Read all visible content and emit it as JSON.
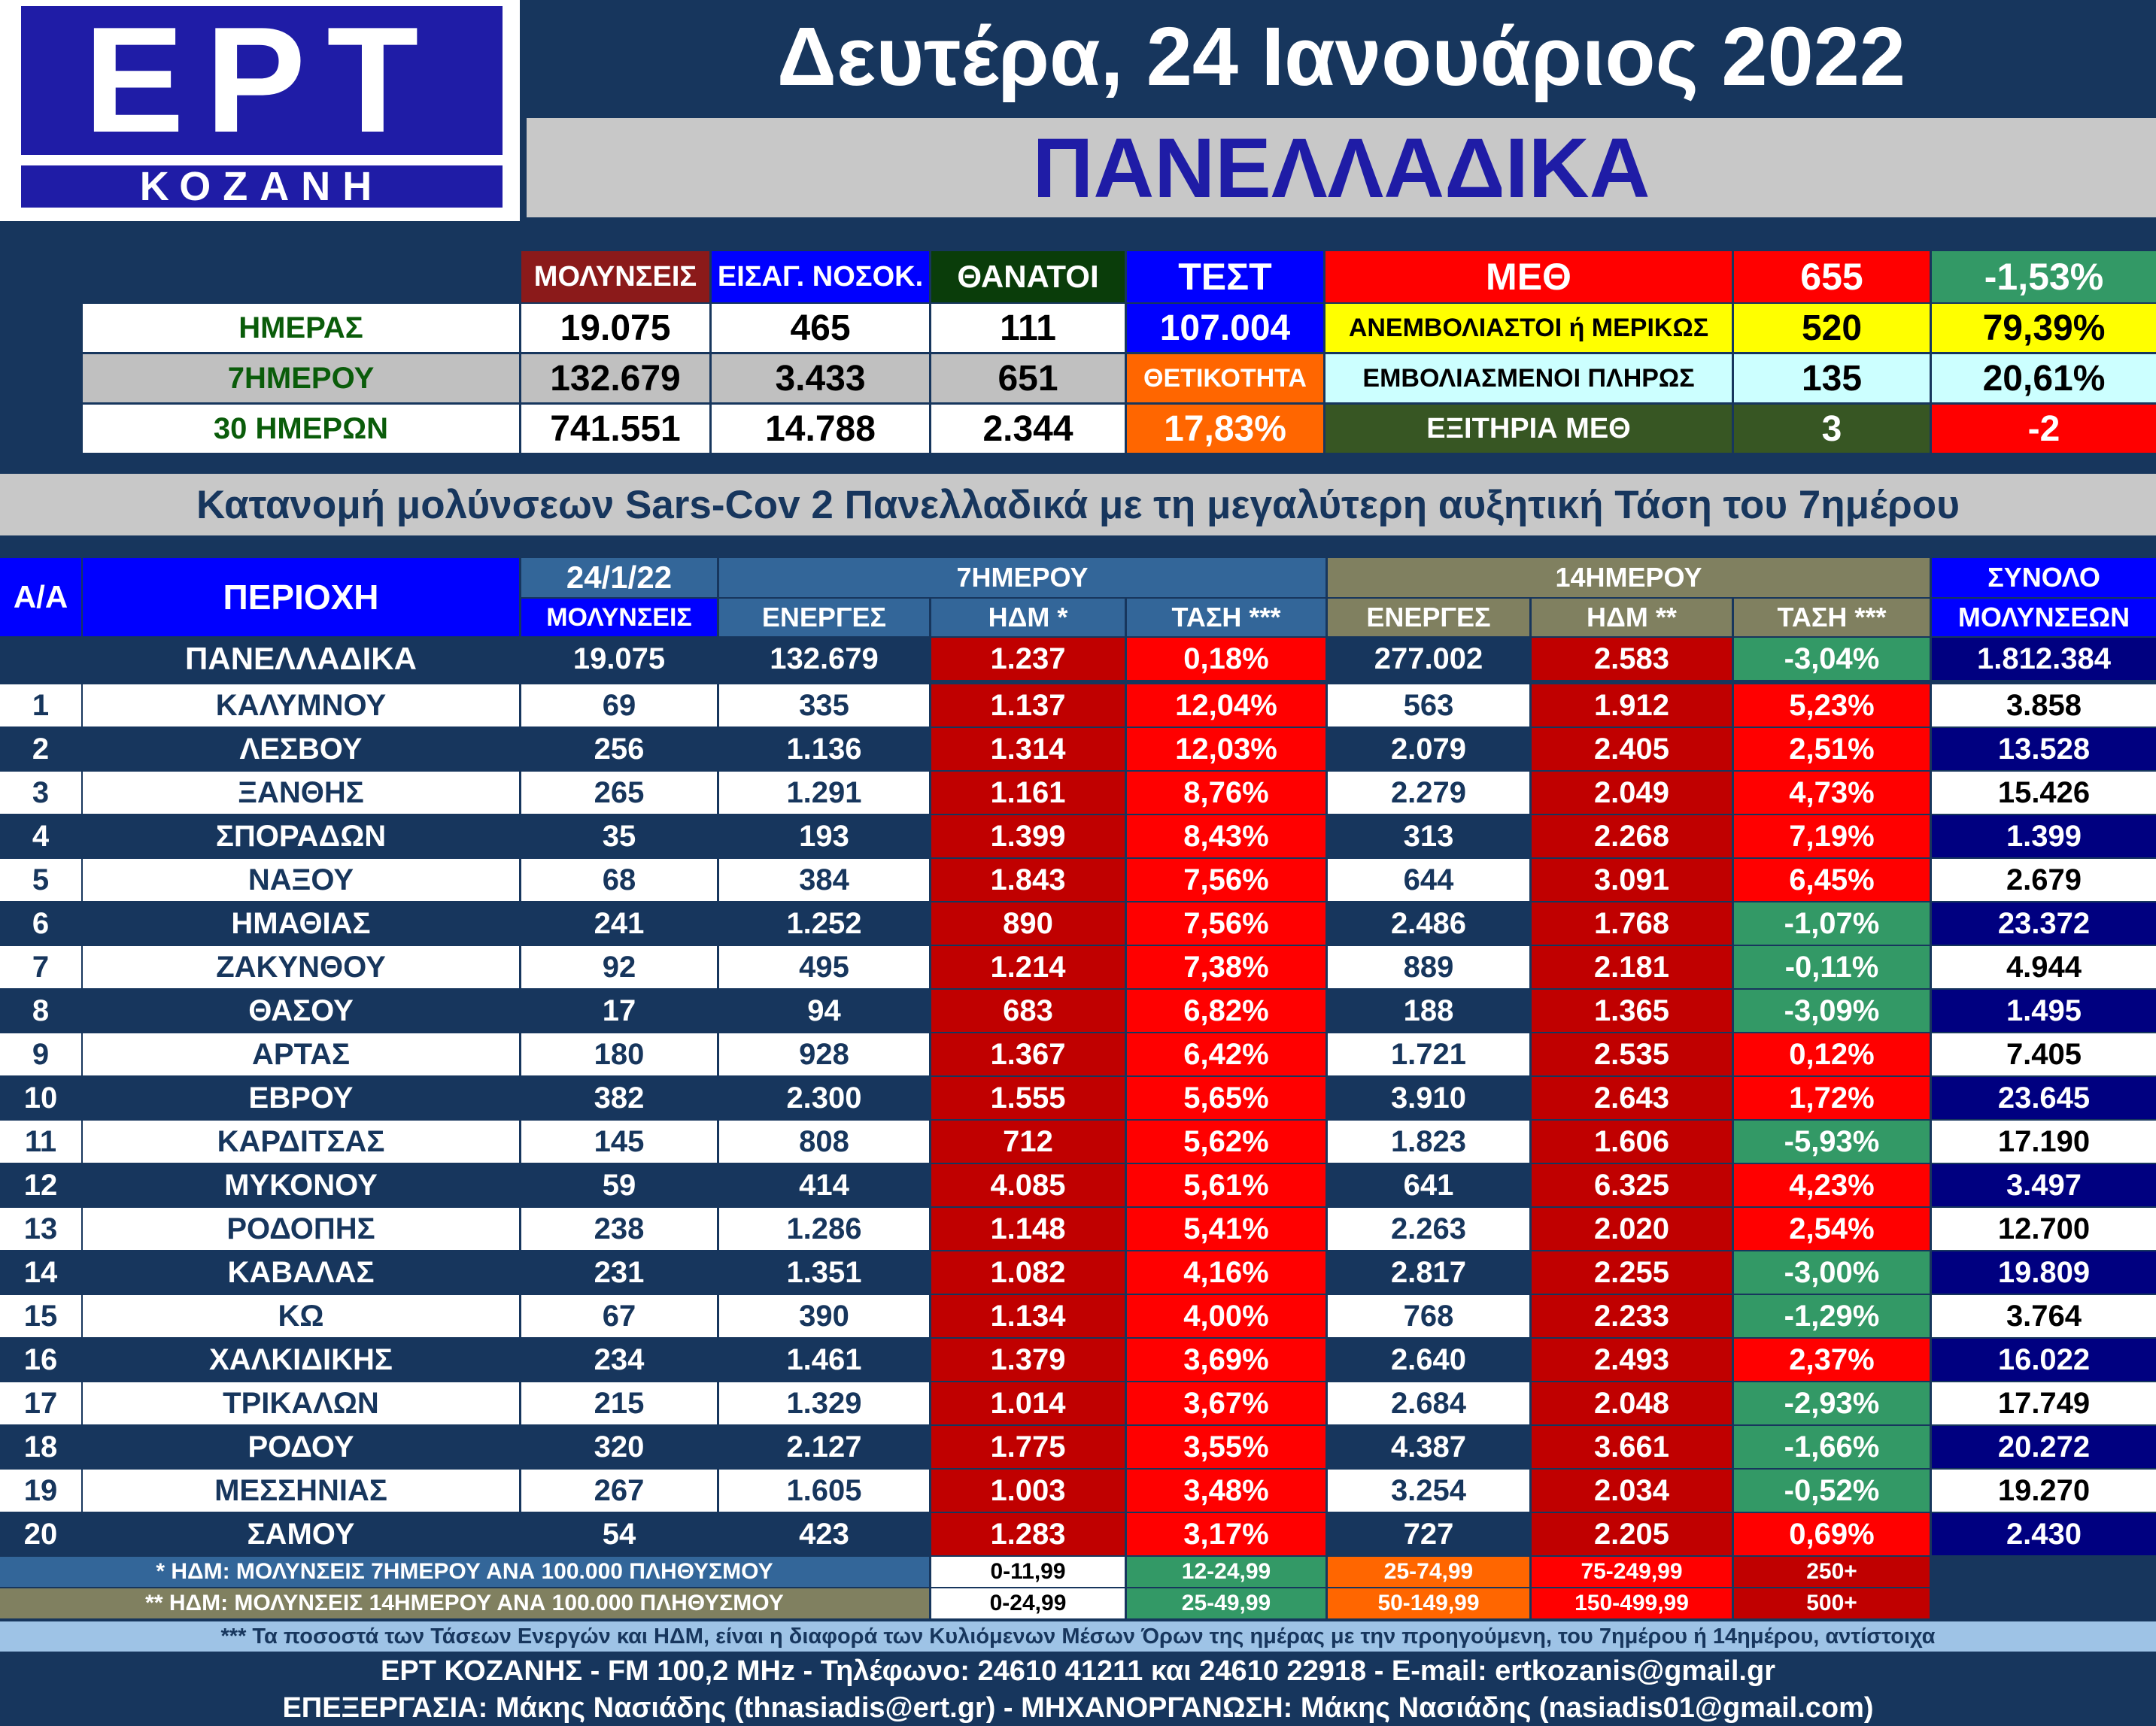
{
  "logo": {
    "ept": "ΕΡΤ",
    "city": "ΚΟΖΑΝΗ"
  },
  "date": "Δευτέρα, 24 Ιανουάριος 2022",
  "region_title": "ΠΑΝΕΛΛΑΔΙΚΑ",
  "summary": {
    "col_headers": {
      "infections": "ΜΟΛΥΝΣΕΙΣ",
      "hospital": "ΕΙΣΑΓ. ΝΟΣΟΚ.",
      "deaths": "ΘΑΝΑΤΟΙ",
      "test": "ΤΕΣΤ",
      "icu": "ΜΕΘ",
      "icu_count": "655",
      "icu_change": "-1,53%"
    },
    "rows": [
      {
        "label": "ΗΜΕΡΑΣ",
        "infections": "19.075",
        "hospital": "465",
        "deaths": "111",
        "extra": "107.004",
        "icu_label": "ΑΝΕΜΒΟΛΙΑΣΤΟΙ ή ΜΕΡΙΚΩΣ",
        "icu_value": "520",
        "icu_pct": "79,39%"
      },
      {
        "label": "7ΗΜΕΡΟΥ",
        "infections": "132.679",
        "hospital": "3.433",
        "deaths": "651",
        "extra": "ΘΕΤΙΚΟΤΗΤΑ",
        "icu_label": "ΕΜΒΟΛΙΑΣΜΕΝΟΙ ΠΛΗΡΩΣ",
        "icu_value": "135",
        "icu_pct": "20,61%"
      },
      {
        "label": "30 ΗΜΕΡΩΝ",
        "infections": "741.551",
        "hospital": "14.788",
        "deaths": "2.344",
        "extra": "17,83%",
        "icu_label": "ΕΞΙΤΗΡΙΑ ΜΕΘ",
        "icu_value": "3",
        "icu_pct": "-2"
      }
    ]
  },
  "table_title": "Κατανομή μολύνσεων Sars-Cov 2 Πανελλαδικά με τη μεγαλύτερη αυξητική Τάση του 7ημέρου",
  "table_headers": {
    "aa": "Α/Α",
    "region": "ΠΕΡΙΟΧΗ",
    "date": "24/1/22",
    "infections": "ΜΟΛΥΝΣΕΙΣ",
    "week": "7ΗΜΕΡΟΥ",
    "week_active": "ΕΝΕΡΓΕΣ",
    "week_hdm": "ΗΔΜ *",
    "week_trend": "ΤΑΣΗ ***",
    "two_week": "14ΗΜΕΡΟΥ",
    "tw_active": "ΕΝΕΡΓΕΣ",
    "tw_hdm": "ΗΔΜ **",
    "tw_trend": "ΤΑΣΗ ***",
    "total": "ΣΥΝΟΛΟ",
    "total2": "ΜΟΛΥΝΣΕΩΝ"
  },
  "national": {
    "region": "ΠΑΝΕΛΛΑΔΙΚΑ",
    "today": "19.075",
    "w_active": "132.679",
    "w_hdm": "1.237",
    "w_trend": "0,18%",
    "t_active": "277.002",
    "t_hdm": "2.583",
    "t_trend": "-3,04%",
    "total": "1.812.384"
  },
  "rows": [
    {
      "n": "1",
      "region": "ΚΑΛΥΜΝΟΥ",
      "today": "69",
      "w_active": "335",
      "w_hdm": "1.137",
      "w_trend": "12,04%",
      "t_active": "563",
      "t_hdm": "1.912",
      "t_trend": "5,23%",
      "total": "3.858"
    },
    {
      "n": "2",
      "region": "ΛΕΣΒΟΥ",
      "today": "256",
      "w_active": "1.136",
      "w_hdm": "1.314",
      "w_trend": "12,03%",
      "t_active": "2.079",
      "t_hdm": "2.405",
      "t_trend": "2,51%",
      "total": "13.528"
    },
    {
      "n": "3",
      "region": "ΞΑΝΘΗΣ",
      "today": "265",
      "w_active": "1.291",
      "w_hdm": "1.161",
      "w_trend": "8,76%",
      "t_active": "2.279",
      "t_hdm": "2.049",
      "t_trend": "4,73%",
      "total": "15.426"
    },
    {
      "n": "4",
      "region": "ΣΠΟΡΑΔΩΝ",
      "today": "35",
      "w_active": "193",
      "w_hdm": "1.399",
      "w_trend": "8,43%",
      "t_active": "313",
      "t_hdm": "2.268",
      "t_trend": "7,19%",
      "total": "1.399"
    },
    {
      "n": "5",
      "region": "ΝΑΞΟΥ",
      "today": "68",
      "w_active": "384",
      "w_hdm": "1.843",
      "w_trend": "7,56%",
      "t_active": "644",
      "t_hdm": "3.091",
      "t_trend": "6,45%",
      "total": "2.679"
    },
    {
      "n": "6",
      "region": "ΗΜΑΘΙΑΣ",
      "today": "241",
      "w_active": "1.252",
      "w_hdm": "890",
      "w_trend": "7,56%",
      "t_active": "2.486",
      "t_hdm": "1.768",
      "t_trend": "-1,07%",
      "total": "23.372"
    },
    {
      "n": "7",
      "region": "ΖΑΚΥΝΘΟΥ",
      "today": "92",
      "w_active": "495",
      "w_hdm": "1.214",
      "w_trend": "7,38%",
      "t_active": "889",
      "t_hdm": "2.181",
      "t_trend": "-0,11%",
      "total": "4.944"
    },
    {
      "n": "8",
      "region": "ΘΑΣΟΥ",
      "today": "17",
      "w_active": "94",
      "w_hdm": "683",
      "w_trend": "6,82%",
      "t_active": "188",
      "t_hdm": "1.365",
      "t_trend": "-3,09%",
      "total": "1.495"
    },
    {
      "n": "9",
      "region": "ΑΡΤΑΣ",
      "today": "180",
      "w_active": "928",
      "w_hdm": "1.367",
      "w_trend": "6,42%",
      "t_active": "1.721",
      "t_hdm": "2.535",
      "t_trend": "0,12%",
      "total": "7.405"
    },
    {
      "n": "10",
      "region": "ΕΒΡΟΥ",
      "today": "382",
      "w_active": "2.300",
      "w_hdm": "1.555",
      "w_trend": "5,65%",
      "t_active": "3.910",
      "t_hdm": "2.643",
      "t_trend": "1,72%",
      "total": "23.645"
    },
    {
      "n": "11",
      "region": "ΚΑΡΔΙΤΣΑΣ",
      "today": "145",
      "w_active": "808",
      "w_hdm": "712",
      "w_trend": "5,62%",
      "t_active": "1.823",
      "t_hdm": "1.606",
      "t_trend": "-5,93%",
      "total": "17.190"
    },
    {
      "n": "12",
      "region": "ΜΥΚΟΝΟΥ",
      "today": "59",
      "w_active": "414",
      "w_hdm": "4.085",
      "w_trend": "5,61%",
      "t_active": "641",
      "t_hdm": "6.325",
      "t_trend": "4,23%",
      "total": "3.497"
    },
    {
      "n": "13",
      "region": "ΡΟΔΟΠΗΣ",
      "today": "238",
      "w_active": "1.286",
      "w_hdm": "1.148",
      "w_trend": "5,41%",
      "t_active": "2.263",
      "t_hdm": "2.020",
      "t_trend": "2,54%",
      "total": "12.700"
    },
    {
      "n": "14",
      "region": "ΚΑΒΑΛΑΣ",
      "today": "231",
      "w_active": "1.351",
      "w_hdm": "1.082",
      "w_trend": "4,16%",
      "t_active": "2.817",
      "t_hdm": "2.255",
      "t_trend": "-3,00%",
      "total": "19.809"
    },
    {
      "n": "15",
      "region": "ΚΩ",
      "today": "67",
      "w_active": "390",
      "w_hdm": "1.134",
      "w_trend": "4,00%",
      "t_active": "768",
      "t_hdm": "2.233",
      "t_trend": "-1,29%",
      "total": "3.764"
    },
    {
      "n": "16",
      "region": "ΧΑΛΚΙΔΙΚΗΣ",
      "today": "234",
      "w_active": "1.461",
      "w_hdm": "1.379",
      "w_trend": "3,69%",
      "t_active": "2.640",
      "t_hdm": "2.493",
      "t_trend": "2,37%",
      "total": "16.022"
    },
    {
      "n": "17",
      "region": "ΤΡΙΚΑΛΩΝ",
      "today": "215",
      "w_active": "1.329",
      "w_hdm": "1.014",
      "w_trend": "3,67%",
      "t_active": "2.684",
      "t_hdm": "2.048",
      "t_trend": "-2,93%",
      "total": "17.749"
    },
    {
      "n": "18",
      "region": "ΡΟΔΟΥ",
      "today": "320",
      "w_active": "2.127",
      "w_hdm": "1.775",
      "w_trend": "3,55%",
      "t_active": "4.387",
      "t_hdm": "3.661",
      "t_trend": "-1,66%",
      "total": "20.272"
    },
    {
      "n": "19",
      "region": "ΜΕΣΣΗΝΙΑΣ",
      "today": "267",
      "w_active": "1.605",
      "w_hdm": "1.003",
      "w_trend": "3,48%",
      "t_active": "3.254",
      "t_hdm": "2.034",
      "t_trend": "-0,52%",
      "total": "19.270"
    },
    {
      "n": "20",
      "region": "ΣΑΜΟΥ",
      "today": "54",
      "w_active": "423",
      "w_hdm": "1.283",
      "w_trend": "3,17%",
      "t_active": "727",
      "t_hdm": "2.205",
      "t_trend": "0,69%",
      "total": "2.430"
    }
  ],
  "legend": {
    "hdm7_note": "* ΗΔΜ: ΜΟΛΥΝΣΕΙΣ 7ΗΜΕΡΟΥ ΑΝΑ 100.000 ΠΛΗΘΥΣΜΟΥ",
    "hdm14_note": "** ΗΔΜ: ΜΟΛΥΝΣΕΙΣ 14ΗΜΕΡΟΥ ΑΝΑ 100.000 ΠΛΗΘΥΣΜΟΥ",
    "ranges7": [
      "0-11,99",
      "12-24,99",
      "25-74,99",
      "75-249,99",
      "250+"
    ],
    "ranges14": [
      "0-24,99",
      "25-49,99",
      "50-149,99",
      "150-499,99",
      "500+"
    ],
    "colors": [
      "#ffffff",
      "#339966",
      "#ff6600",
      "#ff0000",
      "#c00000"
    ]
  },
  "footer": {
    "note": "*** Τα ποσοστά των Τάσεων Ενεργών και ΗΔΜ, είναι η διαφορά των Κυλιόμενων Μέσων Όρων της ημέρας με την προηγούμενη, του 7ημέρου ή 14ημέρου, αντίστοιχα",
    "contact": "ΕΡΤ ΚΟΖΑΝΗΣ - FM 100,2 MHz - Τηλέφωνο:  24610 41211 και 24610 22918 - E-mail: ertkozanis@gmail.gr",
    "credits": "ΕΠΕΞΕΡΓΑΣΙΑ: Μάκης Νασιάδης (thnasiadis@ert.gr) - ΜΗΧΑΝΟΡΓΑΝΩΣΗ: Μάκης Νασιάδης (nasiadis01@gmail.com)"
  }
}
